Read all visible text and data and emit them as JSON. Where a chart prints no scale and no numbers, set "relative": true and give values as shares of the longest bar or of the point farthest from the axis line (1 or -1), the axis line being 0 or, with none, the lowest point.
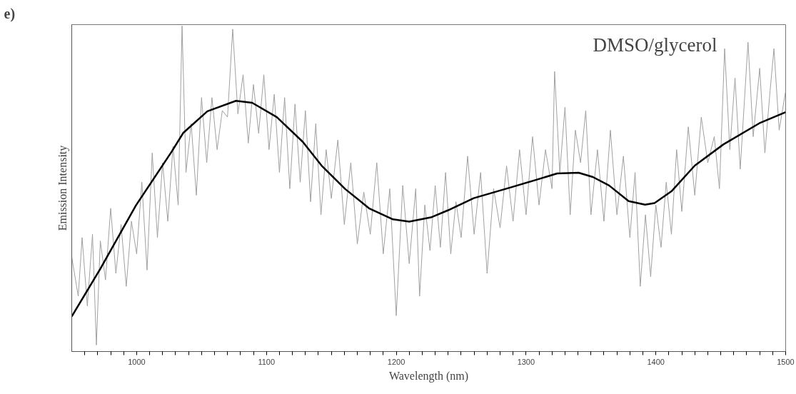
{
  "chart_data": {
    "type": "line",
    "relative": true,
    "xlabel": "Wavelength (nm)",
    "ylabel": "Emission Intensity",
    "annotations": [
      "e)",
      "DMSO/glycerol"
    ],
    "xlim": [
      950,
      1500
    ],
    "xticks": [
      {
        "value": 960,
        "label": null
      },
      {
        "value": 970,
        "label": null
      },
      {
        "value": 980,
        "label": null
      },
      {
        "value": 990,
        "label": null
      },
      1000,
      {
        "value": 1010,
        "label": null
      },
      {
        "value": 1020,
        "label": null
      },
      {
        "value": 1030,
        "label": null
      },
      {
        "value": 1040,
        "label": null
      },
      {
        "value": 1050,
        "label": null
      },
      {
        "value": 1060,
        "label": null
      },
      {
        "value": 1070,
        "label": null
      },
      {
        "value": 1080,
        "label": null
      },
      {
        "value": 1090,
        "label": null
      },
      1100,
      {
        "value": 1110,
        "label": null
      },
      {
        "value": 1120,
        "label": null
      },
      {
        "value": 1130,
        "label": null
      },
      {
        "value": 1140,
        "label": null
      },
      {
        "value": 1150,
        "label": null
      },
      {
        "value": 1160,
        "label": null
      },
      {
        "value": 1170,
        "label": null
      },
      {
        "value": 1180,
        "label": null
      },
      {
        "value": 1190,
        "label": null
      },
      1200,
      {
        "value": 1210,
        "label": null
      },
      {
        "value": 1220,
        "label": null
      },
      {
        "value": 1230,
        "label": null
      },
      {
        "value": 1240,
        "label": null
      },
      {
        "value": 1250,
        "label": null
      },
      {
        "value": 1260,
        "label": null
      },
      {
        "value": 1270,
        "label": null
      },
      {
        "value": 1280,
        "label": null
      },
      {
        "value": 1290,
        "label": null
      },
      1300,
      {
        "value": 1310,
        "label": null
      },
      {
        "value": 1320,
        "label": null
      },
      {
        "value": 1330,
        "label": null
      },
      {
        "value": 1340,
        "label": null
      },
      {
        "value": 1350,
        "label": null
      },
      {
        "value": 1360,
        "label": null
      },
      {
        "value": 1370,
        "label": null
      },
      {
        "value": 1380,
        "label": null
      },
      {
        "value": 1390,
        "label": null
      },
      1400,
      {
        "value": 1410,
        "label": null
      },
      {
        "value": 1420,
        "label": null
      },
      {
        "value": 1430,
        "label": null
      },
      {
        "value": 1440,
        "label": null
      },
      {
        "value": 1450,
        "label": null
      },
      {
        "value": 1460,
        "label": null
      },
      {
        "value": 1470,
        "label": null
      },
      {
        "value": 1480,
        "label": null
      },
      {
        "value": 1490,
        "label": null
      },
      1500
    ],
    "grid": false,
    "series": [
      {
        "color": "#a0a0a0",
        "x": [
          950,
          955,
          958,
          962,
          966,
          969,
          972,
          976,
          980,
          984,
          988,
          992,
          996,
          1000,
          1004,
          1008,
          1012,
          1016,
          1020,
          1024,
          1028,
          1032,
          1035,
          1038,
          1042,
          1046,
          1050,
          1054,
          1058,
          1062,
          1066,
          1070,
          1074,
          1078,
          1082,
          1086,
          1090,
          1094,
          1098,
          1102,
          1106,
          1110,
          1114,
          1118,
          1122,
          1126,
          1130,
          1134,
          1138,
          1142,
          1146,
          1150,
          1155,
          1160,
          1165,
          1170,
          1175,
          1180,
          1185,
          1190,
          1195,
          1200,
          1205,
          1210,
          1215,
          1218,
          1222,
          1226,
          1230,
          1234,
          1238,
          1242,
          1246,
          1250,
          1255,
          1260,
          1265,
          1270,
          1275,
          1280,
          1285,
          1290,
          1295,
          1300,
          1305,
          1310,
          1315,
          1320,
          1322,
          1326,
          1330,
          1334,
          1338,
          1342,
          1346,
          1350,
          1355,
          1360,
          1365,
          1370,
          1375,
          1380,
          1384,
          1388,
          1392,
          1396,
          1400,
          1404,
          1408,
          1412,
          1416,
          1420,
          1425,
          1430,
          1435,
          1440,
          1445,
          1449,
          1453,
          1457,
          1461,
          1465,
          1471,
          1475,
          1480,
          1484,
          1488,
          1491,
          1495,
          1500
        ],
        "values": [
          0.29,
          0.17,
          0.35,
          0.14,
          0.36,
          0.02,
          0.34,
          0.22,
          0.44,
          0.24,
          0.39,
          0.2,
          0.4,
          0.3,
          0.52,
          0.25,
          0.61,
          0.35,
          0.58,
          0.4,
          0.63,
          0.45,
          1.0,
          0.55,
          0.7,
          0.48,
          0.78,
          0.58,
          0.78,
          0.62,
          0.74,
          0.72,
          0.99,
          0.73,
          0.85,
          0.64,
          0.82,
          0.67,
          0.85,
          0.62,
          0.79,
          0.55,
          0.78,
          0.5,
          0.76,
          0.52,
          0.74,
          0.46,
          0.7,
          0.42,
          0.62,
          0.47,
          0.65,
          0.39,
          0.58,
          0.33,
          0.49,
          0.36,
          0.58,
          0.3,
          0.5,
          0.11,
          0.51,
          0.27,
          0.5,
          0.17,
          0.45,
          0.31,
          0.51,
          0.32,
          0.55,
          0.3,
          0.46,
          0.35,
          0.6,
          0.36,
          0.55,
          0.24,
          0.5,
          0.38,
          0.57,
          0.4,
          0.62,
          0.42,
          0.66,
          0.45,
          0.62,
          0.5,
          0.86,
          0.55,
          0.75,
          0.42,
          0.68,
          0.58,
          0.74,
          0.42,
          0.62,
          0.4,
          0.68,
          0.42,
          0.6,
          0.35,
          0.55,
          0.2,
          0.42,
          0.23,
          0.45,
          0.32,
          0.52,
          0.36,
          0.62,
          0.43,
          0.69,
          0.48,
          0.72,
          0.58,
          0.66,
          0.5,
          0.93,
          0.62,
          0.84,
          0.56,
          0.95,
          0.66,
          0.87,
          0.61,
          0.8,
          0.93,
          0.68,
          0.8
        ]
      },
      {
        "color": "#000000",
        "x": [
          950,
          972,
          999.5,
          1027,
          1036,
          1054.5,
          1076.5,
          1089,
          1108,
          1128,
          1142.5,
          1160.7,
          1179,
          1197.5,
          1210,
          1226.7,
          1240,
          1259.7,
          1289,
          1307.5,
          1324,
          1340.5,
          1351.5,
          1364,
          1379,
          1391.7,
          1399,
          1412,
          1430,
          1452,
          1479.7,
          1500
        ],
        "values": [
          0.108,
          0.254,
          0.449,
          0.614,
          0.672,
          0.738,
          0.77,
          0.764,
          0.72,
          0.644,
          0.571,
          0.499,
          0.44,
          0.406,
          0.399,
          0.412,
          0.434,
          0.471,
          0.505,
          0.527,
          0.547,
          0.549,
          0.536,
          0.51,
          0.462,
          0.451,
          0.456,
          0.492,
          0.571,
          0.636,
          0.701,
          0.735
        ]
      }
    ]
  }
}
